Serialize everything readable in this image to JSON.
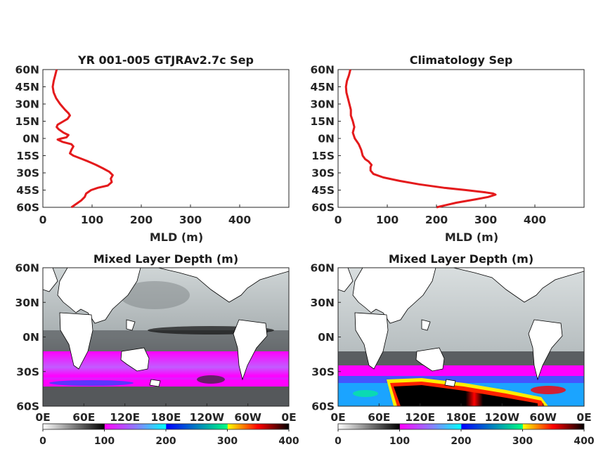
{
  "chart_data": [
    {
      "type": "line",
      "title": "YR 001-005 GTJRAv2.7c Sep",
      "xlabel": "MLD (m)",
      "xlim": [
        0,
        500
      ],
      "xticks": [
        "0",
        "100",
        "200",
        "300",
        "400"
      ],
      "ylim": [
        -60,
        60
      ],
      "yticks": [
        "60N",
        "45N",
        "30N",
        "15N",
        "0N",
        "15S",
        "30S",
        "45S",
        "60S"
      ],
      "series_color": "#e41a1c",
      "profile": [
        {
          "lat": 60,
          "mld": 28
        },
        {
          "lat": 55,
          "mld": 25
        },
        {
          "lat": 50,
          "mld": 22
        },
        {
          "lat": 45,
          "mld": 20
        },
        {
          "lat": 40,
          "mld": 22
        },
        {
          "lat": 35,
          "mld": 27
        },
        {
          "lat": 30,
          "mld": 35
        },
        {
          "lat": 25,
          "mld": 45
        },
        {
          "lat": 22,
          "mld": 52
        },
        {
          "lat": 20,
          "mld": 55
        },
        {
          "lat": 17,
          "mld": 50
        },
        {
          "lat": 15,
          "mld": 42
        },
        {
          "lat": 12,
          "mld": 30
        },
        {
          "lat": 10,
          "mld": 28
        },
        {
          "lat": 8,
          "mld": 32
        },
        {
          "lat": 5,
          "mld": 42
        },
        {
          "lat": 3,
          "mld": 52
        },
        {
          "lat": 1,
          "mld": 48
        },
        {
          "lat": 0,
          "mld": 38
        },
        {
          "lat": -1,
          "mld": 30
        },
        {
          "lat": -3,
          "mld": 40
        },
        {
          "lat": -5,
          "mld": 58
        },
        {
          "lat": -7,
          "mld": 62
        },
        {
          "lat": -10,
          "mld": 58
        },
        {
          "lat": -13,
          "mld": 55
        },
        {
          "lat": -15,
          "mld": 62
        },
        {
          "lat": -18,
          "mld": 80
        },
        {
          "lat": -20,
          "mld": 92
        },
        {
          "lat": -23,
          "mld": 108
        },
        {
          "lat": -26,
          "mld": 122
        },
        {
          "lat": -29,
          "mld": 135
        },
        {
          "lat": -32,
          "mld": 142
        },
        {
          "lat": -35,
          "mld": 138
        },
        {
          "lat": -38,
          "mld": 140
        },
        {
          "lat": -41,
          "mld": 132
        },
        {
          "lat": -43,
          "mld": 112
        },
        {
          "lat": -45,
          "mld": 98
        },
        {
          "lat": -48,
          "mld": 88
        },
        {
          "lat": -51,
          "mld": 85
        },
        {
          "lat": -54,
          "mld": 78
        },
        {
          "lat": -57,
          "mld": 68
        },
        {
          "lat": -60,
          "mld": 58
        }
      ]
    },
    {
      "type": "line",
      "title": "Climatology Sep",
      "xlabel": "MLD (m)",
      "xlim": [
        0,
        500
      ],
      "xticks": [
        "0",
        "100",
        "200",
        "300",
        "400"
      ],
      "ylim": [
        -60,
        60
      ],
      "yticks": [
        "60N",
        "45N",
        "30N",
        "15N",
        "0N",
        "15S",
        "30S",
        "45S",
        "60S"
      ],
      "series_color": "#e41a1c",
      "profile": [
        {
          "lat": 60,
          "mld": 25
        },
        {
          "lat": 55,
          "mld": 22
        },
        {
          "lat": 50,
          "mld": 18
        },
        {
          "lat": 45,
          "mld": 16
        },
        {
          "lat": 40,
          "mld": 17
        },
        {
          "lat": 35,
          "mld": 20
        },
        {
          "lat": 30,
          "mld": 23
        },
        {
          "lat": 25,
          "mld": 26
        },
        {
          "lat": 20,
          "mld": 26
        },
        {
          "lat": 15,
          "mld": 30
        },
        {
          "lat": 10,
          "mld": 33
        },
        {
          "lat": 5,
          "mld": 30
        },
        {
          "lat": 0,
          "mld": 34
        },
        {
          "lat": -5,
          "mld": 42
        },
        {
          "lat": -10,
          "mld": 47
        },
        {
          "lat": -15,
          "mld": 50
        },
        {
          "lat": -18,
          "mld": 55
        },
        {
          "lat": -20,
          "mld": 62
        },
        {
          "lat": -23,
          "mld": 68
        },
        {
          "lat": -25,
          "mld": 66
        },
        {
          "lat": -28,
          "mld": 66
        },
        {
          "lat": -31,
          "mld": 72
        },
        {
          "lat": -34,
          "mld": 92
        },
        {
          "lat": -37,
          "mld": 125
        },
        {
          "lat": -40,
          "mld": 165
        },
        {
          "lat": -43,
          "mld": 215
        },
        {
          "lat": -45,
          "mld": 260
        },
        {
          "lat": -47,
          "mld": 300
        },
        {
          "lat": -48,
          "mld": 315
        },
        {
          "lat": -49,
          "mld": 320
        },
        {
          "lat": -51,
          "mld": 305
        },
        {
          "lat": -53,
          "mld": 280
        },
        {
          "lat": -56,
          "mld": 240
        },
        {
          "lat": -60,
          "mld": 200
        }
      ]
    },
    {
      "type": "heatmap",
      "title": "Mixed Layer Depth (m)",
      "yticks": [
        "60N",
        "30N",
        "0N",
        "30S",
        "60S"
      ],
      "xticks": [
        "0E",
        "60E",
        "120E",
        "180E",
        "120W",
        "60W",
        "0E"
      ],
      "colorbar": {
        "ticks": [
          "0",
          "100",
          "200",
          "300",
          "400"
        ],
        "range": [
          0,
          400
        ]
      }
    },
    {
      "type": "heatmap",
      "title": "Mixed Layer Depth (m)",
      "yticks": [
        "60N",
        "30N",
        "0N",
        "30S",
        "60S"
      ],
      "xticks": [
        "0E",
        "60E",
        "120E",
        "180E",
        "120W",
        "60W",
        "0E"
      ],
      "colorbar": {
        "ticks": [
          "0",
          "100",
          "200",
          "300",
          "400"
        ],
        "range": [
          0,
          400
        ]
      }
    }
  ]
}
